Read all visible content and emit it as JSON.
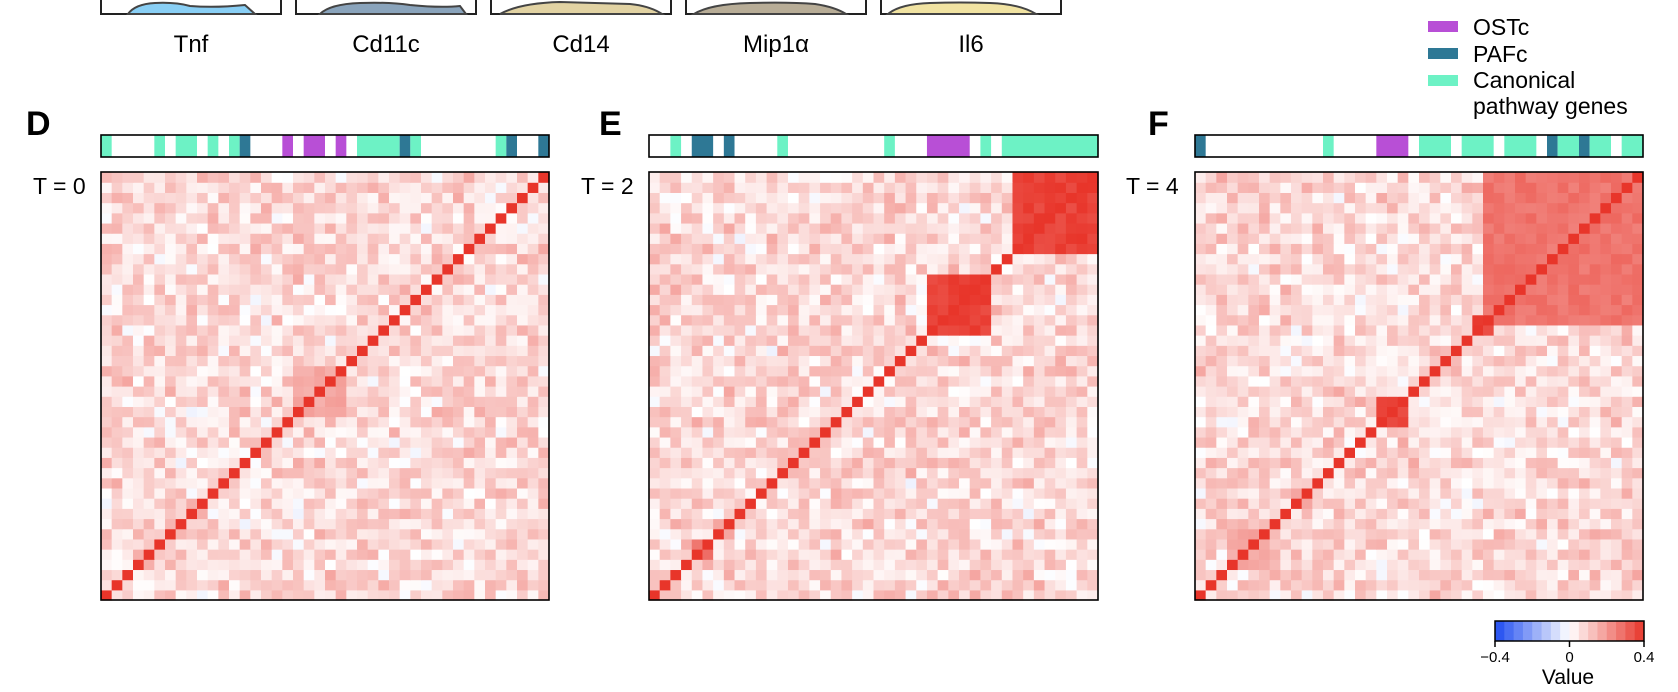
{
  "top_row": {
    "gene_labels": [
      "Tnf",
      "Cd11c",
      "Cd14",
      "Mip1α",
      "Il6"
    ],
    "panel_fills": [
      "#89cff5",
      "#8aa4bc",
      "#e2d3a3",
      "#b8ad97",
      "#f1e3a2"
    ]
  },
  "legend": {
    "items": [
      {
        "label": "OSTc",
        "color": "#b84fd6"
      },
      {
        "label": "PAFc",
        "color": "#2e7895"
      },
      {
        "label": "Canonical",
        "label2": "pathway genes",
        "color": "#6df2c5"
      }
    ]
  },
  "colorbar": {
    "title": "Value",
    "ticks": [
      "−0.4",
      "0",
      "0.4"
    ],
    "range": [
      -0.4,
      0.4
    ],
    "colors": {
      "low": "#1f4cf0",
      "mid": "#ffffff",
      "high": "#e8352a"
    }
  },
  "chart_data": [
    {
      "type": "heatmap",
      "panel": "D",
      "row_label": "T = 0",
      "grid_size": 42,
      "diagonal_value": 0.4,
      "blocks": [
        {
          "start": 18,
          "end": 23,
          "value": 0.2
        }
      ],
      "annotation_bar": [
        {
          "start": 0,
          "end": 1,
          "class": "canonical"
        },
        {
          "start": 5,
          "end": 6,
          "class": "canonical"
        },
        {
          "start": 7,
          "end": 9,
          "class": "canonical"
        },
        {
          "start": 10,
          "end": 11,
          "class": "canonical"
        },
        {
          "start": 12,
          "end": 13,
          "class": "canonical"
        },
        {
          "start": 13,
          "end": 14,
          "class": "pafc"
        },
        {
          "start": 17,
          "end": 18,
          "class": "ostc"
        },
        {
          "start": 19,
          "end": 21,
          "class": "ostc"
        },
        {
          "start": 22,
          "end": 23,
          "class": "ostc"
        },
        {
          "start": 24,
          "end": 28,
          "class": "canonical"
        },
        {
          "start": 28,
          "end": 29,
          "class": "pafc"
        },
        {
          "start": 29,
          "end": 30,
          "class": "canonical"
        },
        {
          "start": 37,
          "end": 38,
          "class": "canonical"
        },
        {
          "start": 38,
          "end": 39,
          "class": "pafc"
        },
        {
          "start": 41,
          "end": 42,
          "class": "pafc"
        }
      ]
    },
    {
      "type": "heatmap",
      "panel": "E",
      "row_label": "T = 2",
      "grid_size": 42,
      "diagonal_value": 0.4,
      "blocks": [
        {
          "start": 26,
          "end": 32,
          "value": 0.4
        },
        {
          "start": 34,
          "end": 42,
          "value": 0.4
        },
        {
          "start": 13,
          "end": 17,
          "value": 0.15
        },
        {
          "start": 4,
          "end": 6,
          "value": 0.3
        }
      ],
      "annotation_bar": [
        {
          "start": 2,
          "end": 3,
          "class": "canonical"
        },
        {
          "start": 4,
          "end": 6,
          "class": "pafc"
        },
        {
          "start": 7,
          "end": 8,
          "class": "pafc"
        },
        {
          "start": 12,
          "end": 13,
          "class": "canonical"
        },
        {
          "start": 22,
          "end": 23,
          "class": "canonical"
        },
        {
          "start": 26,
          "end": 30,
          "class": "ostc"
        },
        {
          "start": 31,
          "end": 32,
          "class": "canonical"
        },
        {
          "start": 33,
          "end": 42,
          "class": "canonical"
        }
      ]
    },
    {
      "type": "heatmap",
      "panel": "F",
      "row_label": "T = 4",
      "grid_size": 42,
      "diagonal_value": 0.4,
      "blocks": [
        {
          "start": 27,
          "end": 42,
          "value": 0.3
        },
        {
          "start": 17,
          "end": 20,
          "value": 0.4
        },
        {
          "start": 26,
          "end": 28,
          "value": 0.4
        },
        {
          "start": 3,
          "end": 7,
          "value": 0.2
        }
      ],
      "annotation_bar": [
        {
          "start": 0,
          "end": 1,
          "class": "pafc"
        },
        {
          "start": 12,
          "end": 13,
          "class": "canonical"
        },
        {
          "start": 17,
          "end": 20,
          "class": "ostc"
        },
        {
          "start": 21,
          "end": 24,
          "class": "canonical"
        },
        {
          "start": 25,
          "end": 28,
          "class": "canonical"
        },
        {
          "start": 29,
          "end": 32,
          "class": "canonical"
        },
        {
          "start": 33,
          "end": 34,
          "class": "pafc"
        },
        {
          "start": 34,
          "end": 36,
          "class": "canonical"
        },
        {
          "start": 36,
          "end": 37,
          "class": "pafc"
        },
        {
          "start": 37,
          "end": 39,
          "class": "canonical"
        },
        {
          "start": 40,
          "end": 42,
          "class": "canonical"
        }
      ]
    }
  ]
}
